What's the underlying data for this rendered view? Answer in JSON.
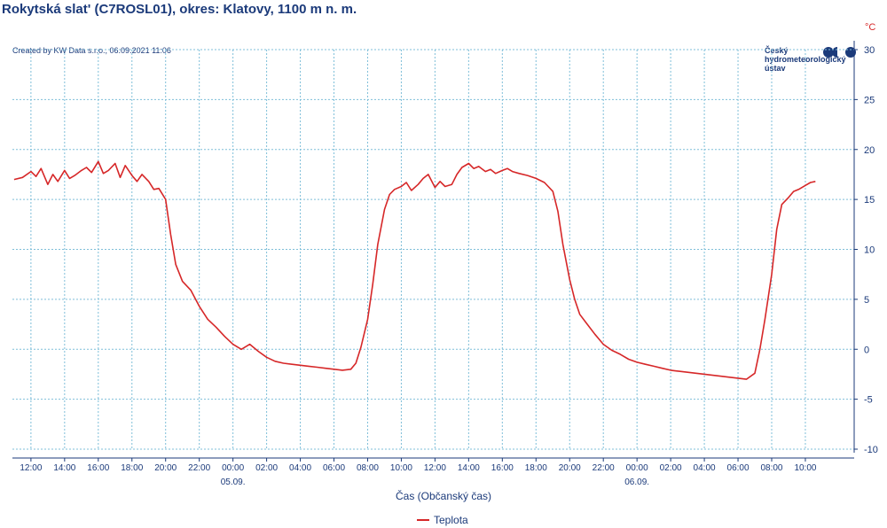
{
  "header": {
    "title": "Rokytská slat' (C7ROSL01), okres: Klatovy, 1100 m n. m.",
    "created": "Created by KW Data s.r.o., 06.09.2021 11:06"
  },
  "logo": {
    "text": "Český\nhydrometeorologický\nústav",
    "icon": "chmi-logo-icon",
    "color": "#1b3a7a"
  },
  "chart_data": {
    "type": "line",
    "ylabel": "°C",
    "xlabel": "Čas (Občanský čas)",
    "ylim": [
      -10,
      30
    ],
    "yticks": [
      30,
      25,
      20,
      15,
      10,
      5,
      0,
      -5,
      -10
    ],
    "xticks": [
      {
        "h": 12,
        "label": "12:00"
      },
      {
        "h": 14,
        "label": "14:00"
      },
      {
        "h": 16,
        "label": "16:00"
      },
      {
        "h": 18,
        "label": "18:00"
      },
      {
        "h": 20,
        "label": "20:00"
      },
      {
        "h": 22,
        "label": "22:00"
      },
      {
        "h": 24,
        "label": "00:00"
      },
      {
        "h": 26,
        "label": "02:00"
      },
      {
        "h": 28,
        "label": "04:00"
      },
      {
        "h": 30,
        "label": "06:00"
      },
      {
        "h": 32,
        "label": "08:00"
      },
      {
        "h": 34,
        "label": "10:00"
      },
      {
        "h": 36,
        "label": "12:00"
      },
      {
        "h": 38,
        "label": "14:00"
      },
      {
        "h": 40,
        "label": "16:00"
      },
      {
        "h": 42,
        "label": "18:00"
      },
      {
        "h": 44,
        "label": "20:00"
      },
      {
        "h": 46,
        "label": "22:00"
      },
      {
        "h": 48,
        "label": "00:00"
      },
      {
        "h": 50,
        "label": "02:00"
      },
      {
        "h": 52,
        "label": "04:00"
      },
      {
        "h": 54,
        "label": "06:00"
      },
      {
        "h": 56,
        "label": "08:00"
      },
      {
        "h": 58,
        "label": "10:00"
      }
    ],
    "date_labels": [
      {
        "h": 24,
        "label": "05.09."
      },
      {
        "h": 48,
        "label": "06.09."
      }
    ],
    "xlim": [
      10.9,
      60.9
    ],
    "grid": true,
    "legend_position": "bottom-center",
    "series": [
      {
        "name": "Teplota",
        "color": "#d62728",
        "x": [
          11,
          11.5,
          12,
          12.3,
          12.6,
          13,
          13.3,
          13.6,
          14,
          14.3,
          14.6,
          15,
          15.3,
          15.6,
          16,
          16.3,
          16.6,
          17,
          17.3,
          17.6,
          18,
          18.3,
          18.6,
          19,
          19.3,
          19.6,
          20,
          20.3,
          20.6,
          21,
          21.5,
          22,
          22.5,
          23,
          23.5,
          24,
          24.5,
          25,
          25.5,
          26,
          26.5,
          27,
          27.5,
          28,
          28.5,
          29,
          29.5,
          30,
          30.5,
          31,
          31.3,
          31.6,
          32,
          32.3,
          32.6,
          33,
          33.3,
          33.6,
          34,
          34.3,
          34.6,
          35,
          35.3,
          35.6,
          36,
          36.3,
          36.6,
          37,
          37.3,
          37.6,
          38,
          38.3,
          38.6,
          39,
          39.3,
          39.6,
          40,
          40.3,
          40.6,
          41,
          41.5,
          42,
          42.5,
          43,
          43.3,
          43.6,
          44,
          44.3,
          44.6,
          45,
          45.5,
          46,
          46.5,
          47,
          47.5,
          48,
          48.5,
          49,
          49.5,
          50,
          50.5,
          51,
          51.5,
          52,
          52.5,
          53,
          53.5,
          54,
          54.5,
          55,
          55.3,
          55.6,
          56,
          56.3,
          56.6,
          57,
          57.3,
          57.6,
          58,
          58.3,
          58.6
        ],
        "values": [
          17.0,
          17.2,
          17.8,
          17.3,
          18.1,
          16.5,
          17.5,
          16.8,
          17.9,
          17.1,
          17.4,
          17.9,
          18.2,
          17.7,
          18.8,
          17.6,
          17.9,
          18.6,
          17.2,
          18.4,
          17.4,
          16.8,
          17.5,
          16.8,
          16.0,
          16.1,
          15.0,
          11.5,
          8.5,
          6.8,
          5.9,
          4.3,
          3.0,
          2.2,
          1.3,
          0.5,
          0.0,
          0.5,
          -0.2,
          -0.8,
          -1.2,
          -1.4,
          -1.5,
          -1.6,
          -1.7,
          -1.8,
          -1.9,
          -2.0,
          -2.1,
          -2.0,
          -1.4,
          0.2,
          3.0,
          6.5,
          10.5,
          14.0,
          15.5,
          16.0,
          16.3,
          16.7,
          15.9,
          16.5,
          17.1,
          17.5,
          16.2,
          16.8,
          16.3,
          16.5,
          17.5,
          18.2,
          18.6,
          18.1,
          18.3,
          17.8,
          18.0,
          17.6,
          17.9,
          18.1,
          17.8,
          17.6,
          17.4,
          17.1,
          16.7,
          15.8,
          13.8,
          10.5,
          7.0,
          5.0,
          3.5,
          2.6,
          1.5,
          0.5,
          -0.1,
          -0.5,
          -1.0,
          -1.3,
          -1.5,
          -1.7,
          -1.9,
          -2.1,
          -2.2,
          -2.3,
          -2.4,
          -2.5,
          -2.6,
          -2.7,
          -2.8,
          -2.9,
          -3.0,
          -2.4,
          0.0,
          3.0,
          7.5,
          12.0,
          14.5,
          15.2,
          15.8,
          16.0,
          16.4,
          16.7,
          16.8
        ]
      }
    ]
  }
}
